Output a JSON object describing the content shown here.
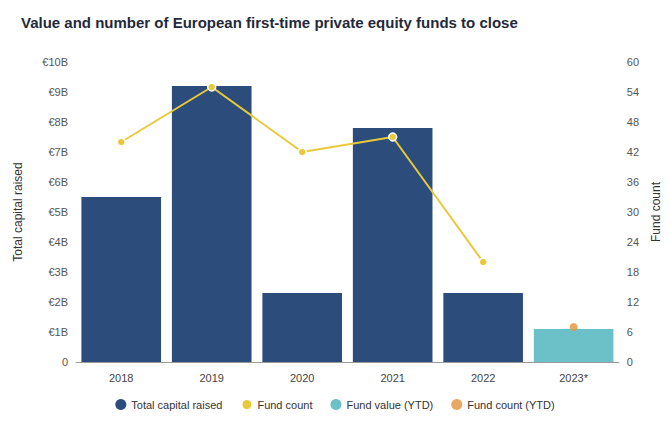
{
  "chart_data": {
    "type": "bar",
    "title": "Value and number of European first-time private equity funds to close",
    "categories": [
      "2018",
      "2019",
      "2020",
      "2021",
      "2022",
      "2023*"
    ],
    "y_label": "Total capital raised",
    "y2_label": "Fund count",
    "ylim": [
      0,
      10
    ],
    "yticks": [
      0,
      {
        "value": 1,
        "label": "€1B"
      },
      {
        "value": 2,
        "label": "€2B"
      },
      {
        "value": 3,
        "label": "€3B"
      },
      {
        "value": 4,
        "label": "€4B"
      },
      {
        "value": 5,
        "label": "€5B"
      },
      {
        "value": 6,
        "label": "€6B"
      },
      {
        "value": 7,
        "label": "€7B"
      },
      {
        "value": 8,
        "label": "€8B"
      },
      {
        "value": 9,
        "label": "€9B"
      },
      {
        "value": 10,
        "label": "€10B"
      }
    ],
    "y2lim": [
      0,
      60
    ],
    "y2ticks": [
      0,
      6,
      12,
      18,
      24,
      30,
      36,
      42,
      48,
      54,
      60
    ],
    "grid": false,
    "legend": "bottom",
    "series": [
      {
        "name": "Total capital raised",
        "type": "bar",
        "color": "#2c4d7c",
        "values": [
          5.5,
          9.2,
          2.3,
          7.8,
          2.3,
          null
        ]
      },
      {
        "name": "Fund count",
        "type": "line",
        "axis": "y2",
        "color": "#e8c93a",
        "marker": "circle",
        "values": [
          44,
          55,
          42,
          45,
          20,
          null
        ]
      },
      {
        "name": "Fund value (YTD)",
        "type": "bar",
        "color": "#6cc0c8",
        "values": [
          null,
          null,
          null,
          null,
          null,
          1.1
        ]
      },
      {
        "name": "Fund count (YTD)",
        "type": "scatter",
        "axis": "y2",
        "color": "#e2923c",
        "marker": "circle",
        "values": [
          null,
          null,
          null,
          null,
          null,
          7
        ]
      }
    ]
  }
}
